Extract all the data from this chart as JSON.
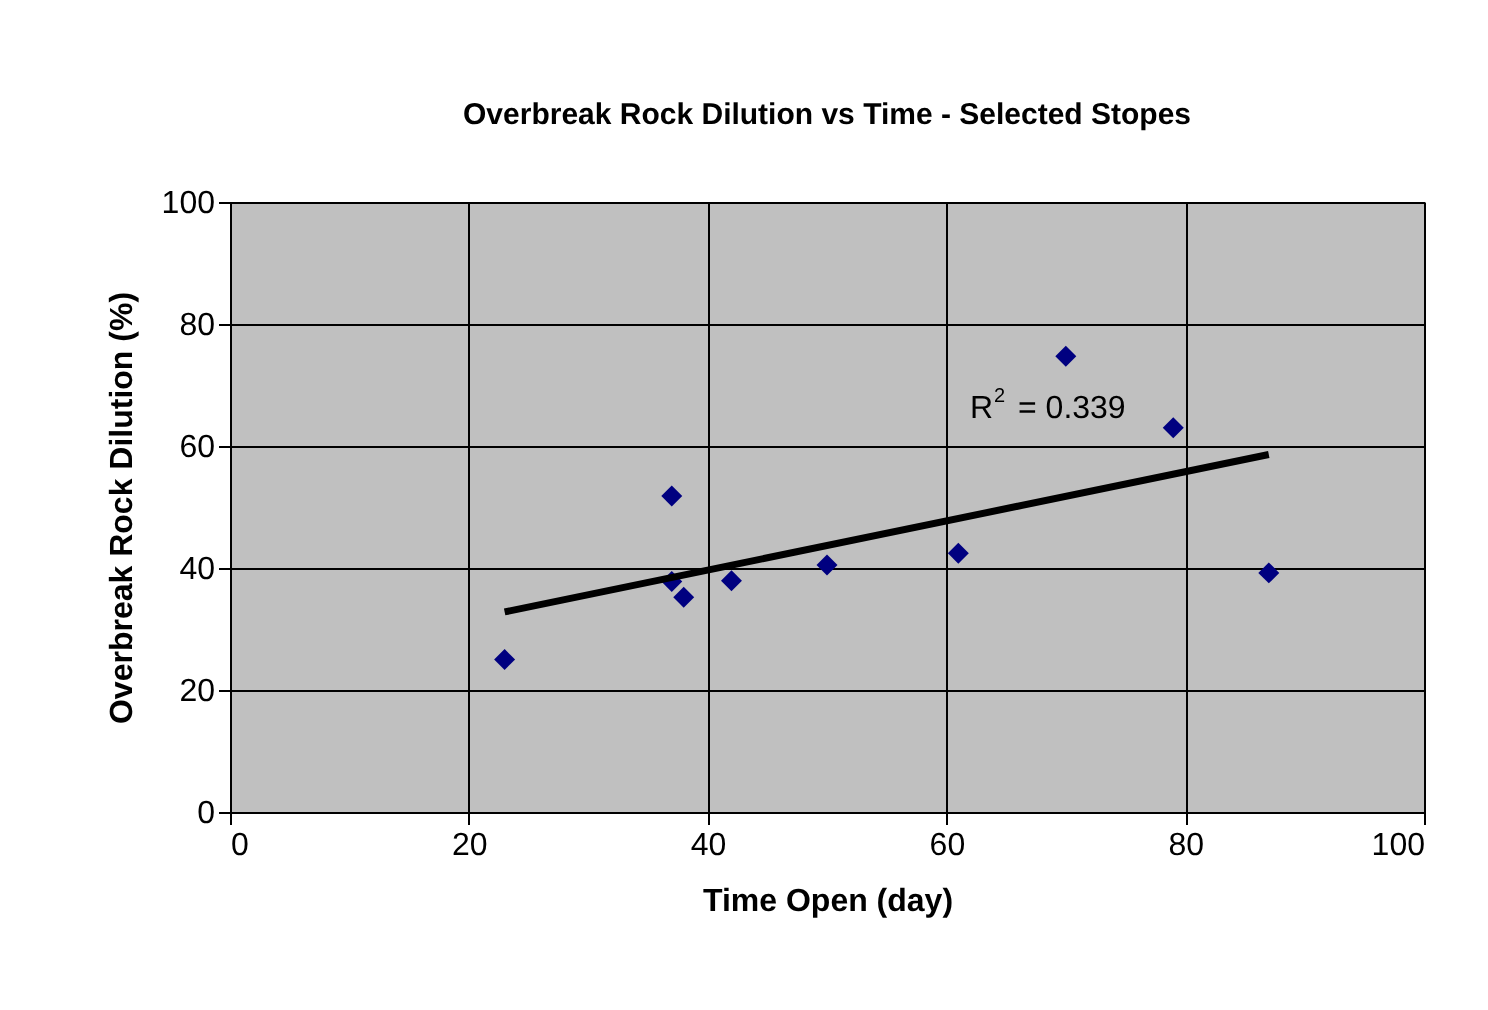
{
  "chart_data": {
    "type": "scatter",
    "title": "Overbreak Rock Dilution vs Time - Selected Stopes",
    "xlabel": "Time Open (day)",
    "ylabel": "Overbreak Rock Dilution (%)",
    "series": [
      {
        "color": "#000080",
        "marker": "diamond",
        "x": [
          23,
          37,
          37,
          38,
          42,
          50,
          61,
          70,
          79,
          87
        ],
        "values": [
          25,
          51.8,
          37.8,
          35.2,
          37.9,
          40.5,
          42.4,
          74.7,
          63.0,
          39.2
        ]
      },
      {
        "type": "line",
        "color": "#000000",
        "marker": "none",
        "line_style": "solid",
        "x": [
          23,
          87
        ],
        "values": [
          32.8,
          58.6
        ]
      }
    ],
    "annotations": [
      "R$^{2}$ = 0.339"
    ],
    "xlim": [
      0,
      100
    ],
    "xticks": [
      0,
      20,
      40,
      60,
      80,
      100
    ],
    "ylim": [
      0,
      100
    ],
    "yticks": [
      0,
      20,
      40,
      60,
      80,
      100
    ],
    "grid": true
  }
}
